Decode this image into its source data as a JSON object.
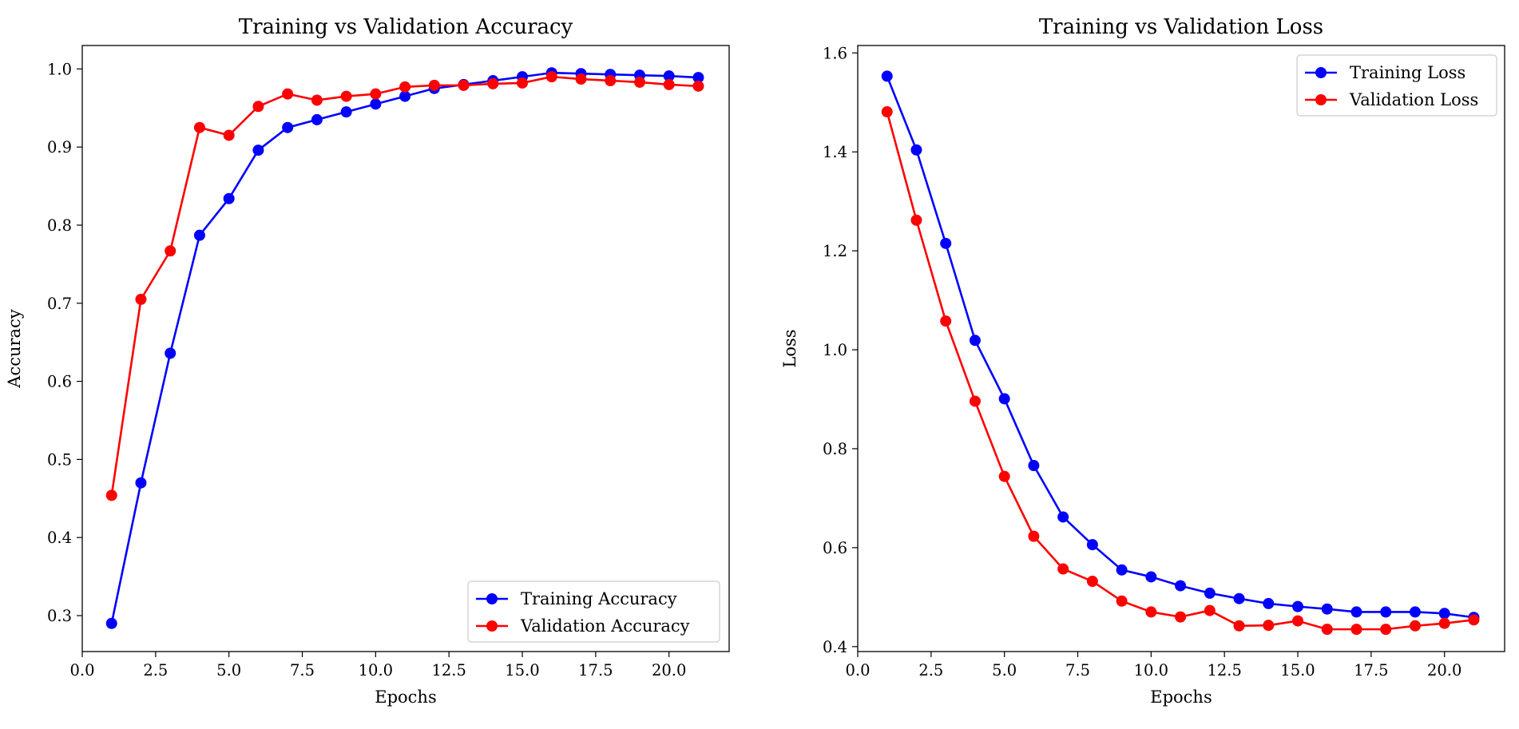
{
  "chart_data": [
    {
      "type": "line",
      "title": "Training vs Validation Accuracy",
      "xlabel": "Epochs",
      "ylabel": "Accuracy",
      "xlim": [
        0,
        22.05
      ],
      "ylim": [
        0.254,
        1.03
      ],
      "xticks": [
        "0.0",
        "2.5",
        "5.0",
        "7.5",
        "10.0",
        "12.5",
        "15.0",
        "17.5",
        "20.0"
      ],
      "yticks": [
        "0.3",
        "0.4",
        "0.5",
        "0.6",
        "0.7",
        "0.8",
        "0.9",
        "1.0"
      ],
      "legend_position": "lower-right",
      "x": [
        1,
        2,
        3,
        4,
        5,
        6,
        7,
        8,
        9,
        10,
        11,
        12,
        13,
        14,
        15,
        16,
        17,
        18,
        19,
        20,
        21
      ],
      "series": [
        {
          "name": "Training Accuracy",
          "color": "#0000ff",
          "values": [
            0.29,
            0.47,
            0.636,
            0.787,
            0.834,
            0.896,
            0.925,
            0.935,
            0.945,
            0.955,
            0.965,
            0.975,
            0.98,
            0.985,
            0.99,
            0.995,
            0.994,
            0.993,
            0.992,
            0.991,
            0.989
          ]
        },
        {
          "name": "Validation Accuracy",
          "color": "#ff0000",
          "values": [
            0.454,
            0.705,
            0.767,
            0.925,
            0.915,
            0.952,
            0.968,
            0.96,
            0.965,
            0.968,
            0.977,
            0.979,
            0.979,
            0.981,
            0.982,
            0.99,
            0.987,
            0.985,
            0.983,
            0.98,
            0.978
          ]
        }
      ]
    },
    {
      "type": "line",
      "title": "Training vs Validation Loss",
      "xlabel": "Epochs",
      "ylabel": "Loss",
      "xlim": [
        0,
        22.05
      ],
      "ylim": [
        0.39,
        1.615
      ],
      "xticks": [
        "0.0",
        "2.5",
        "5.0",
        "7.5",
        "10.0",
        "12.5",
        "15.0",
        "17.5",
        "20.0"
      ],
      "yticks": [
        "0.4",
        "0.6",
        "0.8",
        "1.0",
        "1.2",
        "1.4",
        "1.6"
      ],
      "legend_position": "upper-right",
      "x": [
        1,
        2,
        3,
        4,
        5,
        6,
        7,
        8,
        9,
        10,
        11,
        12,
        13,
        14,
        15,
        16,
        17,
        18,
        19,
        20,
        21
      ],
      "series": [
        {
          "name": "Training Loss",
          "color": "#0000ff",
          "values": [
            1.553,
            1.404,
            1.215,
            1.019,
            0.901,
            0.766,
            0.662,
            0.606,
            0.555,
            0.541,
            0.523,
            0.508,
            0.497,
            0.487,
            0.481,
            0.476,
            0.47,
            0.47,
            0.47,
            0.467,
            0.459
          ]
        },
        {
          "name": "Validation Loss",
          "color": "#ff0000",
          "values": [
            1.481,
            1.262,
            1.058,
            0.896,
            0.744,
            0.623,
            0.557,
            0.532,
            0.492,
            0.47,
            0.46,
            0.473,
            0.442,
            0.443,
            0.452,
            0.435,
            0.435,
            0.435,
            0.442,
            0.447,
            0.454
          ]
        }
      ]
    }
  ]
}
